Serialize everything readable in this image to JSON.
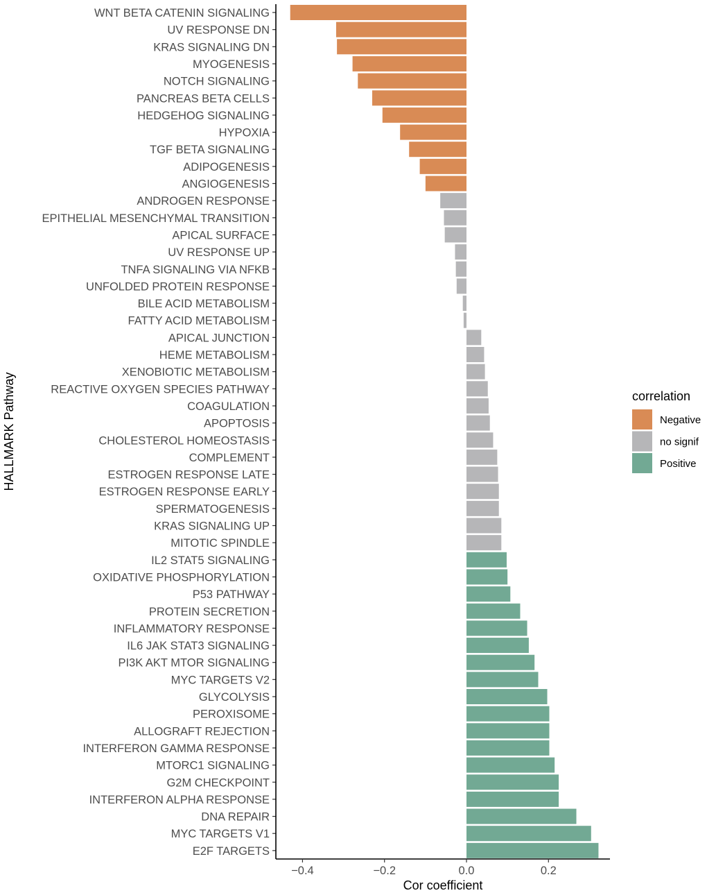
{
  "chart_data": {
    "type": "bar",
    "orientation": "horizontal",
    "xlabel": "Cor coefficient",
    "ylabel": "HALLMARK Pathway",
    "xlim": [
      -0.465,
      0.35
    ],
    "xticks": [
      -0.4,
      -0.2,
      0.0,
      0.2
    ],
    "xtick_labels": [
      "−0.4",
      "−0.2",
      "0.0",
      "0.2"
    ],
    "grid": false,
    "legend": {
      "title": "correlation",
      "position": "right",
      "entries": [
        {
          "key": "Negative",
          "label": "Negative",
          "color": "#D98B55"
        },
        {
          "key": "no signif",
          "label": "no signif",
          "color": "#B6B6B8"
        },
        {
          "key": "Positive",
          "label": "Positive",
          "color": "#72A994"
        }
      ]
    },
    "bars": [
      {
        "pathway": "WNT BETA CATENIN SIGNALING",
        "value": -0.43,
        "group": "Negative"
      },
      {
        "pathway": "UV RESPONSE DN",
        "value": -0.318,
        "group": "Negative"
      },
      {
        "pathway": "KRAS SIGNALING DN",
        "value": -0.316,
        "group": "Negative"
      },
      {
        "pathway": "MYOGENESIS",
        "value": -0.278,
        "group": "Negative"
      },
      {
        "pathway": "NOTCH SIGNALING",
        "value": -0.265,
        "group": "Negative"
      },
      {
        "pathway": "PANCREAS BETA CELLS",
        "value": -0.23,
        "group": "Negative"
      },
      {
        "pathway": "HEDGEHOG SIGNALING",
        "value": -0.205,
        "group": "Negative"
      },
      {
        "pathway": "HYPOXIA",
        "value": -0.162,
        "group": "Negative"
      },
      {
        "pathway": "TGF BETA SIGNALING",
        "value": -0.14,
        "group": "Negative"
      },
      {
        "pathway": "ADIPOGENESIS",
        "value": -0.114,
        "group": "Negative"
      },
      {
        "pathway": "ANGIOGENESIS",
        "value": -0.1,
        "group": "Negative"
      },
      {
        "pathway": "ANDROGEN RESPONSE",
        "value": -0.064,
        "group": "no signif"
      },
      {
        "pathway": "EPITHELIAL MESENCHYMAL TRANSITION",
        "value": -0.055,
        "group": "no signif"
      },
      {
        "pathway": "APICAL SURFACE",
        "value": -0.053,
        "group": "no signif"
      },
      {
        "pathway": "UV RESPONSE UP",
        "value": -0.028,
        "group": "no signif"
      },
      {
        "pathway": "TNFA SIGNALING VIA NFKB",
        "value": -0.026,
        "group": "no signif"
      },
      {
        "pathway": "UNFOLDED PROTEIN RESPONSE",
        "value": -0.024,
        "group": "no signif"
      },
      {
        "pathway": "BILE ACID METABOLISM",
        "value": -0.009,
        "group": "no signif"
      },
      {
        "pathway": "FATTY ACID METABOLISM",
        "value": -0.007,
        "group": "no signif"
      },
      {
        "pathway": "APICAL JUNCTION",
        "value": 0.036,
        "group": "no signif"
      },
      {
        "pathway": "HEME METABOLISM",
        "value": 0.043,
        "group": "no signif"
      },
      {
        "pathway": "XENOBIOTIC METABOLISM",
        "value": 0.045,
        "group": "no signif"
      },
      {
        "pathway": "REACTIVE OXYGEN SPECIES PATHWAY",
        "value": 0.052,
        "group": "no signif"
      },
      {
        "pathway": "COAGULATION",
        "value": 0.054,
        "group": "no signif"
      },
      {
        "pathway": "APOPTOSIS",
        "value": 0.057,
        "group": "no signif"
      },
      {
        "pathway": "CHOLESTEROL HOMEOSTASIS",
        "value": 0.065,
        "group": "no signif"
      },
      {
        "pathway": "COMPLEMENT",
        "value": 0.075,
        "group": "no signif"
      },
      {
        "pathway": "ESTROGEN RESPONSE LATE",
        "value": 0.077,
        "group": "no signif"
      },
      {
        "pathway": "ESTROGEN RESPONSE EARLY",
        "value": 0.079,
        "group": "no signif"
      },
      {
        "pathway": "SPERMATOGENESIS",
        "value": 0.079,
        "group": "no signif"
      },
      {
        "pathway": "KRAS SIGNALING UP",
        "value": 0.085,
        "group": "no signif"
      },
      {
        "pathway": "MITOTIC SPINDLE",
        "value": 0.085,
        "group": "no signif"
      },
      {
        "pathway": "IL2 STAT5 SIGNALING",
        "value": 0.098,
        "group": "Positive"
      },
      {
        "pathway": "OXIDATIVE PHOSPHORYLATION",
        "value": 0.1,
        "group": "Positive"
      },
      {
        "pathway": "P53 PATHWAY",
        "value": 0.107,
        "group": "Positive"
      },
      {
        "pathway": "PROTEIN SECRETION",
        "value": 0.131,
        "group": "Positive"
      },
      {
        "pathway": "INFLAMMATORY RESPONSE",
        "value": 0.148,
        "group": "Positive"
      },
      {
        "pathway": "IL6 JAK STAT3 SIGNALING",
        "value": 0.152,
        "group": "Positive"
      },
      {
        "pathway": "PI3K AKT MTOR SIGNALING",
        "value": 0.166,
        "group": "Positive"
      },
      {
        "pathway": "MYC TARGETS V2",
        "value": 0.175,
        "group": "Positive"
      },
      {
        "pathway": "GLYCOLYSIS",
        "value": 0.197,
        "group": "Positive"
      },
      {
        "pathway": "PEROXISOME",
        "value": 0.202,
        "group": "Positive"
      },
      {
        "pathway": "ALLOGRAFT REJECTION",
        "value": 0.202,
        "group": "Positive"
      },
      {
        "pathway": "INTERFERON GAMMA RESPONSE",
        "value": 0.202,
        "group": "Positive"
      },
      {
        "pathway": "MTORC1 SIGNALING",
        "value": 0.215,
        "group": "Positive"
      },
      {
        "pathway": "G2M CHECKPOINT",
        "value": 0.225,
        "group": "Positive"
      },
      {
        "pathway": "INTERFERON ALPHA RESPONSE",
        "value": 0.225,
        "group": "Positive"
      },
      {
        "pathway": "DNA REPAIR",
        "value": 0.268,
        "group": "Positive"
      },
      {
        "pathway": "MYC TARGETS V1",
        "value": 0.304,
        "group": "Positive"
      },
      {
        "pathway": "E2F TARGETS",
        "value": 0.322,
        "group": "Positive"
      }
    ]
  }
}
